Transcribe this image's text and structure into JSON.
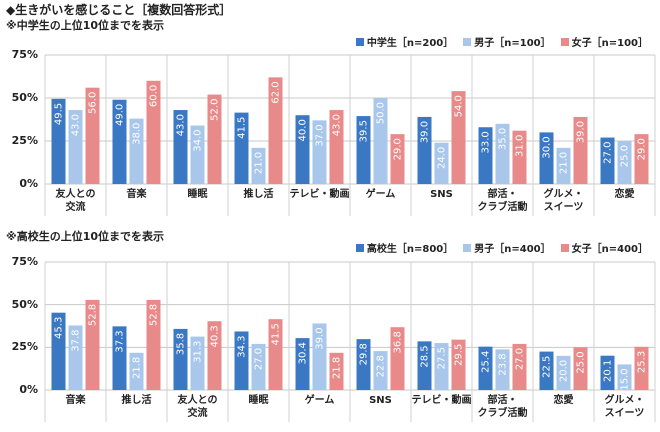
{
  "title": "◆生きがいを感じること［複数回答形式］",
  "chart_data": [
    {
      "type": "bar",
      "subtitle": "※中学生の上位10位までを表示",
      "categories": [
        "友人との\n交流",
        "音楽",
        "睡眠",
        "推し活",
        "テレビ・動画",
        "ゲーム",
        "SNS",
        "部活・\nクラブ活動",
        "グルメ・\nスイーツ",
        "恋愛"
      ],
      "series": [
        {
          "name": "中学生［n=200］",
          "color": "#3b78c3",
          "values": [
            49.5,
            49.0,
            43.0,
            41.5,
            40.0,
            39.5,
            39.0,
            33.0,
            30.0,
            27.0
          ],
          "value_labels": [
            "49.5",
            "49.0",
            "43.0",
            "41.5",
            "40.0",
            "39.5",
            "39.0",
            "33.0",
            "30.0",
            "27.0"
          ]
        },
        {
          "name": "男子［n=100］",
          "color": "#a8c7ea",
          "values": [
            43.0,
            38.0,
            34.0,
            21.0,
            37.0,
            50.0,
            24.0,
            35.0,
            21.0,
            25.0
          ],
          "value_labels": [
            "43.0",
            "38.0",
            "34.0",
            "21.0",
            "37.0",
            "50.0",
            "24.0",
            "35.0",
            "21.0",
            "25.0"
          ]
        },
        {
          "name": "女子［n=100］",
          "color": "#e98a8a",
          "values": [
            56.0,
            60.0,
            52.0,
            62.0,
            43.0,
            29.0,
            54.0,
            31.0,
            39.0,
            29.0
          ],
          "value_labels": [
            "56.0",
            "60.0",
            "52.0",
            "62.0",
            "43.0",
            "29.0",
            "54.0",
            "31.0",
            "39.0",
            "29.0"
          ]
        }
      ],
      "ylim": [
        0,
        75
      ],
      "yticks": [
        {
          "value": 0,
          "label": "0%"
        },
        {
          "value": 25,
          "label": "25%"
        },
        {
          "value": 50,
          "label": "50%"
        },
        {
          "value": 75,
          "label": "75%"
        }
      ],
      "grid": true,
      "legend": "top-right"
    },
    {
      "type": "bar",
      "subtitle": "※高校生の上位10位までを表示",
      "categories": [
        "音楽",
        "推し活",
        "友人との\n交流",
        "睡眠",
        "ゲーム",
        "SNS",
        "テレビ・動画",
        "部活・\nクラブ活動",
        "恋愛",
        "グルメ・\nスイーツ"
      ],
      "series": [
        {
          "name": "高校生［n=800］",
          "color": "#3b78c3",
          "values": [
            45.3,
            37.3,
            35.8,
            34.3,
            30.4,
            29.8,
            28.5,
            25.4,
            22.5,
            20.1
          ],
          "value_labels": [
            "45.3",
            "37.3",
            "35.8",
            "34.3",
            "30.4",
            "29.8",
            "28.5",
            "25.4",
            "22.5",
            "20.1"
          ]
        },
        {
          "name": "男子［n=400］",
          "color": "#a8c7ea",
          "values": [
            37.8,
            21.8,
            31.3,
            27.0,
            39.0,
            22.8,
            27.5,
            23.8,
            20.0,
            15.0
          ],
          "value_labels": [
            "37.8",
            "21.8",
            "31.3",
            "27.0",
            "39.0",
            "22.8",
            "27.5",
            "23.8",
            "20.0",
            "15.0"
          ]
        },
        {
          "name": "女子［n=400］",
          "color": "#e98a8a",
          "values": [
            52.8,
            52.8,
            40.3,
            41.5,
            21.8,
            36.8,
            29.5,
            27.0,
            25.0,
            25.3
          ],
          "value_labels": [
            "52.8",
            "52.8",
            "40.3",
            "41.5",
            "21.8",
            "36.8",
            "29.5",
            "27.0",
            "25.0",
            "25.3"
          ]
        }
      ],
      "ylim": [
        0,
        75
      ],
      "yticks": [
        {
          "value": 0,
          "label": "0%"
        },
        {
          "value": 25,
          "label": "25%"
        },
        {
          "value": 50,
          "label": "50%"
        },
        {
          "value": 75,
          "label": "75%"
        }
      ],
      "grid": true,
      "legend": "top-right"
    }
  ]
}
